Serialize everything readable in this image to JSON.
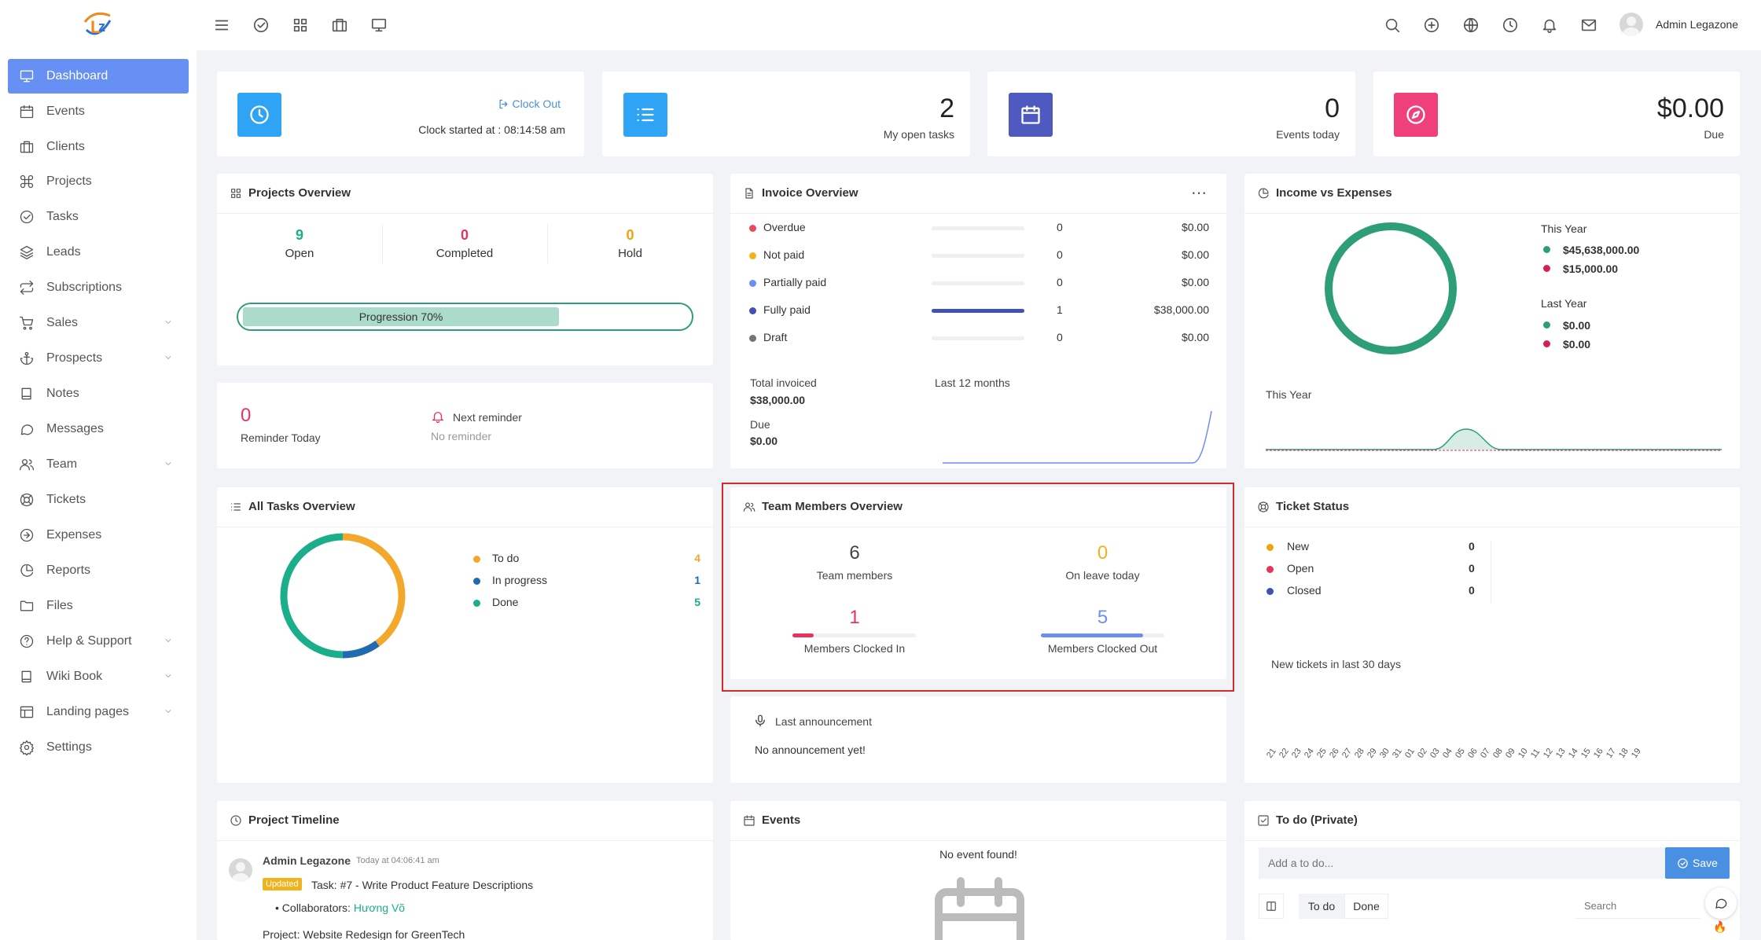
{
  "header": {
    "user_name": "Admin Legazone",
    "icons": [
      "menu-icon",
      "check-circle-icon",
      "grid-icon",
      "briefcase-icon",
      "monitor-icon",
      "search-icon",
      "plus-circle-icon",
      "globe-icon",
      "clock-icon",
      "bell-icon",
      "mail-icon"
    ]
  },
  "sidebar": {
    "items": [
      {
        "label": "Dashboard",
        "icon": "monitor-icon",
        "active": true
      },
      {
        "label": "Events",
        "icon": "calendar-icon"
      },
      {
        "label": "Clients",
        "icon": "briefcase-icon"
      },
      {
        "label": "Projects",
        "icon": "command-icon"
      },
      {
        "label": "Tasks",
        "icon": "check-circle-icon"
      },
      {
        "label": "Leads",
        "icon": "layers-icon"
      },
      {
        "label": "Subscriptions",
        "icon": "repeat-icon"
      },
      {
        "label": "Sales",
        "icon": "cart-icon",
        "submenu": true
      },
      {
        "label": "Prospects",
        "icon": "anchor-icon",
        "submenu": true
      },
      {
        "label": "Notes",
        "icon": "book-icon"
      },
      {
        "label": "Messages",
        "icon": "message-icon"
      },
      {
        "label": "Team",
        "icon": "users-icon",
        "submenu": true
      },
      {
        "label": "Tickets",
        "icon": "lifebuoy-icon"
      },
      {
        "label": "Expenses",
        "icon": "arrow-circle-icon"
      },
      {
        "label": "Reports",
        "icon": "pie-icon"
      },
      {
        "label": "Files",
        "icon": "folder-icon"
      },
      {
        "label": "Help & Support",
        "icon": "help-icon",
        "submenu": true
      },
      {
        "label": "Wiki Book",
        "icon": "book-icon",
        "submenu": true
      },
      {
        "label": "Landing pages",
        "icon": "layout-icon",
        "submenu": true
      },
      {
        "label": "Settings",
        "icon": "settings-icon"
      }
    ]
  },
  "clock": {
    "clock_out": "Clock Out",
    "started": "Clock started at : 08:14:58 am"
  },
  "stats": [
    {
      "value": "2",
      "label": "My open tasks",
      "color": "#2fa4f5"
    },
    {
      "value": "0",
      "label": "Events today",
      "color": "#4e5abf"
    },
    {
      "value": "$0.00",
      "label": "Due",
      "color": "#f0407b"
    }
  ],
  "projects": {
    "title": "Projects Overview",
    "open": {
      "value": "9",
      "label": "Open"
    },
    "completed": {
      "value": "0",
      "label": "Completed"
    },
    "hold": {
      "value": "0",
      "label": "Hold"
    },
    "progress_label": "Progression 70%",
    "progress": 0.7
  },
  "reminder": {
    "count": "0",
    "label": "Reminder Today",
    "next": "Next reminder",
    "none": "No reminder"
  },
  "invoice": {
    "title": "Invoice Overview",
    "rows": [
      {
        "label": "Overdue",
        "count": "0",
        "amount": "$0.00",
        "color": "#e74c5e",
        "fill": 0
      },
      {
        "label": "Not paid",
        "count": "0",
        "amount": "$0.00",
        "color": "#f1b31c",
        "fill": 0
      },
      {
        "label": "Partially paid",
        "count": "0",
        "amount": "$0.00",
        "color": "#6b8ef0",
        "fill": 0
      },
      {
        "label": "Fully paid",
        "count": "1",
        "amount": "$38,000.00",
        "color": "#3f51b5",
        "fill": 1
      },
      {
        "label": "Draft",
        "count": "0",
        "amount": "$0.00",
        "color": "#757575",
        "fill": 0
      }
    ],
    "total_label": "Total invoiced",
    "total_value": "$38,000.00",
    "due_label": "Due",
    "due_value": "$0.00",
    "chart_label": "Last 12 months"
  },
  "income": {
    "title": "Income vs Expenses",
    "this_year": "This Year",
    "income_this": "$45,638,000.00",
    "expense_this": "$15,000.00",
    "last_year": "Last Year",
    "income_last": "$0.00",
    "expense_last": "$0.00",
    "chart_label": "This Year",
    "income_color": "#2e9e79",
    "expense_color": "#d6214f"
  },
  "tasks": {
    "title": "All Tasks Overview",
    "rows": [
      {
        "label": "To do",
        "value": "4",
        "color": "#f4a82b"
      },
      {
        "label": "In progress",
        "value": "1",
        "color": "#1f6ab0"
      },
      {
        "label": "Done",
        "value": "5",
        "color": "#1aae8a"
      }
    ]
  },
  "team": {
    "title": "Team Members Overview",
    "members": {
      "value": "6",
      "label": "Team members"
    },
    "leave": {
      "value": "0",
      "label": "On leave today"
    },
    "clocked_in": {
      "value": "1",
      "label": "Members Clocked In",
      "fill": 0.17
    },
    "clocked_out": {
      "value": "5",
      "label": "Members Clocked Out",
      "fill": 0.83
    }
  },
  "announcement": {
    "title": "Last announcement",
    "text": "No announcement yet!"
  },
  "tickets": {
    "title": "Ticket Status",
    "rows": [
      {
        "label": "New",
        "value": "0",
        "color": "#f1a20f"
      },
      {
        "label": "Open",
        "value": "0",
        "color": "#e8335d"
      },
      {
        "label": "Closed",
        "value": "0",
        "color": "#3f51b5"
      }
    ],
    "chart_label": "New tickets in last 30 days",
    "days": [
      "21",
      "22",
      "23",
      "24",
      "25",
      "26",
      "27",
      "28",
      "29",
      "30",
      "31",
      "01",
      "02",
      "03",
      "04",
      "05",
      "06",
      "07",
      "08",
      "09",
      "10",
      "11",
      "12",
      "13",
      "14",
      "15",
      "16",
      "17",
      "18",
      "19"
    ]
  },
  "timeline": {
    "title": "Project Timeline",
    "user": "Admin Legazone",
    "time": "Today at 04:06:41 am",
    "badge": "Updated",
    "task": "Task: #7 - Write Product Feature Descriptions",
    "collab_label": "Collaborators:",
    "collab_name": "Hương Võ",
    "project": "Project: Website Redesign for GreenTech"
  },
  "events": {
    "title": "Events",
    "empty": "No event found!"
  },
  "todo": {
    "title": "To do (Private)",
    "placeholder": "Add a to do...",
    "save": "Save",
    "tab_todo": "To do",
    "tab_done": "Done",
    "search": "Search"
  }
}
